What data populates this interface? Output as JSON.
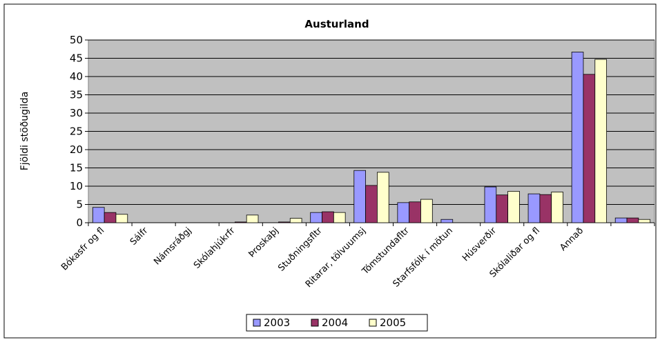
{
  "chart_data": {
    "type": "bar",
    "title": "Austurland",
    "y_label": "Fjöldi stöðugilda",
    "categories": [
      "Bókasfr og fl",
      "Sálfr",
      "Námsráðgj",
      "Skólahjúkrfr",
      "Þroskaþj",
      "Stuðningsfltr",
      "Ritarar, tölvuumsj",
      "Tómstundafltr",
      "Starfsfólk í mötun",
      "Húsverðir",
      "Skólaliðar og fl",
      "Annað",
      null
    ],
    "series": [
      {
        "name": "2003",
        "color": "#9999ff",
        "values": [
          4.2,
          0,
          0,
          0,
          0,
          2.8,
          14.3,
          5.5,
          0.9,
          9.8,
          7.9,
          46.7,
          1.3
        ]
      },
      {
        "name": "2004",
        "color": "#993366",
        "values": [
          2.8,
          0,
          0,
          0.2,
          0.2,
          3.0,
          10.2,
          5.7,
          0,
          7.6,
          7.7,
          40.6,
          1.3
        ]
      },
      {
        "name": "2005",
        "color": "#ffffcc",
        "values": [
          2.3,
          0,
          0,
          2.1,
          1.2,
          2.8,
          13.8,
          6.4,
          0,
          8.6,
          8.4,
          44.7,
          0.9
        ]
      }
    ],
    "ylim": [
      0,
      50
    ],
    "yticks": [
      0,
      5,
      10,
      15,
      20,
      25,
      30,
      35,
      40,
      45,
      50
    ],
    "grid": true,
    "legend": "bottom"
  }
}
